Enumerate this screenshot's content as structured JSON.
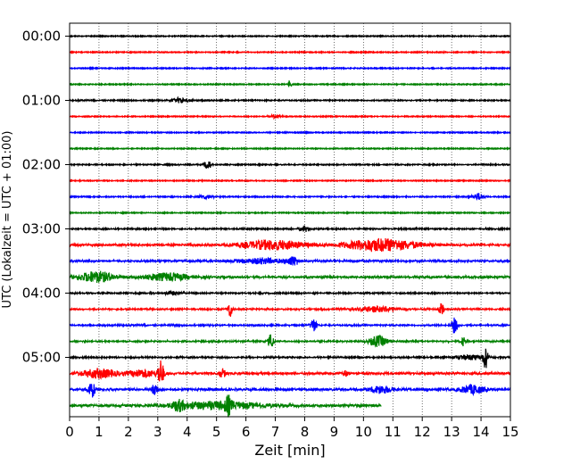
{
  "chart_data": {
    "type": "line",
    "chart_kind": "helicorder (seismogram drum plot)",
    "xlabel": "Zeit  [min]",
    "ylabel": "UTC (Lokalzeit = UTC + 01:00)",
    "xlim": [
      0,
      15
    ],
    "x_ticks": [
      "0",
      "1",
      "2",
      "3",
      "4",
      "5",
      "6",
      "7",
      "8",
      "9",
      "10",
      "11",
      "12",
      "13",
      "14",
      "15"
    ],
    "y_tick_labels": [
      "00:00",
      "01:00",
      "02:00",
      "03:00",
      "04:00",
      "05:00"
    ],
    "minutes_per_line": 15,
    "line_colors": [
      "#000000",
      "#ff0000",
      "#0000ff",
      "#008000"
    ],
    "vertical_grid": "dotted",
    "last_line_end_minute": 10.6,
    "traces": [
      {
        "start": "00:00",
        "color": "#000000",
        "level": 0.3,
        "events": []
      },
      {
        "start": "00:15",
        "color": "#ff0000",
        "level": 0.3,
        "events": []
      },
      {
        "start": "00:30",
        "color": "#0000ff",
        "level": 0.3,
        "events": []
      },
      {
        "start": "00:45",
        "color": "#008000",
        "level": 0.3,
        "events": [
          {
            "t": 7.5,
            "a": 6,
            "d": 0.05
          }
        ]
      },
      {
        "start": "01:00",
        "color": "#000000",
        "level": 0.4,
        "events": [
          {
            "t": 3.8,
            "a": 3,
            "d": 0.3
          }
        ]
      },
      {
        "start": "01:15",
        "color": "#ff0000",
        "level": 0.3,
        "events": [
          {
            "t": 7.0,
            "a": 2,
            "d": 0.2
          }
        ]
      },
      {
        "start": "01:30",
        "color": "#0000ff",
        "level": 0.3,
        "events": []
      },
      {
        "start": "01:45",
        "color": "#008000",
        "level": 0.3,
        "events": []
      },
      {
        "start": "02:00",
        "color": "#000000",
        "level": 0.4,
        "events": [
          {
            "t": 4.7,
            "a": 6,
            "d": 0.1
          }
        ]
      },
      {
        "start": "02:15",
        "color": "#ff0000",
        "level": 0.3,
        "events": []
      },
      {
        "start": "02:30",
        "color": "#0000ff",
        "level": 0.4,
        "events": [
          {
            "t": 4.6,
            "a": 2,
            "d": 0.3
          },
          {
            "t": 13.9,
            "a": 4,
            "d": 0.2
          }
        ]
      },
      {
        "start": "02:45",
        "color": "#008000",
        "level": 0.3,
        "events": []
      },
      {
        "start": "03:00",
        "color": "#000000",
        "level": 0.5,
        "events": [
          {
            "t": 8.0,
            "a": 3,
            "d": 0.2
          }
        ]
      },
      {
        "start": "03:15",
        "color": "#ff0000",
        "level": 1.0,
        "events": [
          {
            "t": 6.9,
            "a": 5,
            "d": 1.1
          },
          {
            "t": 10.6,
            "a": 7,
            "d": 1.2
          }
        ]
      },
      {
        "start": "03:30",
        "color": "#0000ff",
        "level": 0.8,
        "events": [
          {
            "t": 6.5,
            "a": 3,
            "d": 0.8
          },
          {
            "t": 7.6,
            "a": 5,
            "d": 0.2
          }
        ]
      },
      {
        "start": "03:45",
        "color": "#008000",
        "level": 1.0,
        "events": [
          {
            "t": 0.9,
            "a": 6,
            "d": 0.6
          },
          {
            "t": 3.3,
            "a": 4,
            "d": 0.8
          }
        ]
      },
      {
        "start": "04:00",
        "color": "#000000",
        "level": 0.5,
        "events": [
          {
            "t": 3.5,
            "a": 2,
            "d": 0.3
          }
        ]
      },
      {
        "start": "04:15",
        "color": "#ff0000",
        "level": 0.6,
        "events": [
          {
            "t": 5.45,
            "a": 9,
            "d": 0.08
          },
          {
            "t": 10.5,
            "a": 3,
            "d": 0.7
          },
          {
            "t": 12.65,
            "a": 7,
            "d": 0.08
          }
        ]
      },
      {
        "start": "04:30",
        "color": "#0000ff",
        "level": 0.6,
        "events": [
          {
            "t": 8.3,
            "a": 8,
            "d": 0.1
          },
          {
            "t": 13.1,
            "a": 9,
            "d": 0.1
          }
        ]
      },
      {
        "start": "04:45",
        "color": "#008000",
        "level": 0.6,
        "events": [
          {
            "t": 6.85,
            "a": 8,
            "d": 0.1
          },
          {
            "t": 10.5,
            "a": 6,
            "d": 0.3
          },
          {
            "t": 13.4,
            "a": 5,
            "d": 0.08
          }
        ]
      },
      {
        "start": "05:00",
        "color": "#000000",
        "level": 0.6,
        "events": [
          {
            "t": 14.15,
            "a": 12,
            "d": 0.08
          },
          {
            "t": 13.6,
            "a": 3,
            "d": 0.5
          }
        ]
      },
      {
        "start": "05:15",
        "color": "#ff0000",
        "level": 1.1,
        "events": [
          {
            "t": 3.1,
            "a": 14,
            "d": 0.1
          },
          {
            "t": 1.0,
            "a": 5,
            "d": 0.6
          },
          {
            "t": 2.5,
            "a": 4,
            "d": 0.5
          },
          {
            "t": 5.2,
            "a": 5,
            "d": 0.1
          },
          {
            "t": 9.4,
            "a": 3,
            "d": 0.1
          }
        ]
      },
      {
        "start": "05:30",
        "color": "#0000ff",
        "level": 1.1,
        "events": [
          {
            "t": 0.75,
            "a": 10,
            "d": 0.1
          },
          {
            "t": 2.9,
            "a": 7,
            "d": 0.1
          },
          {
            "t": 10.6,
            "a": 4,
            "d": 0.4
          },
          {
            "t": 13.7,
            "a": 5,
            "d": 0.4
          }
        ]
      },
      {
        "start": "05:45",
        "color": "#008000",
        "level": 1.2,
        "events": [
          {
            "t": 3.7,
            "a": 5,
            "d": 0.2
          },
          {
            "t": 5.0,
            "a": 4,
            "d": 1.5
          },
          {
            "t": 5.4,
            "a": 8,
            "d": 0.1
          }
        ]
      }
    ]
  }
}
